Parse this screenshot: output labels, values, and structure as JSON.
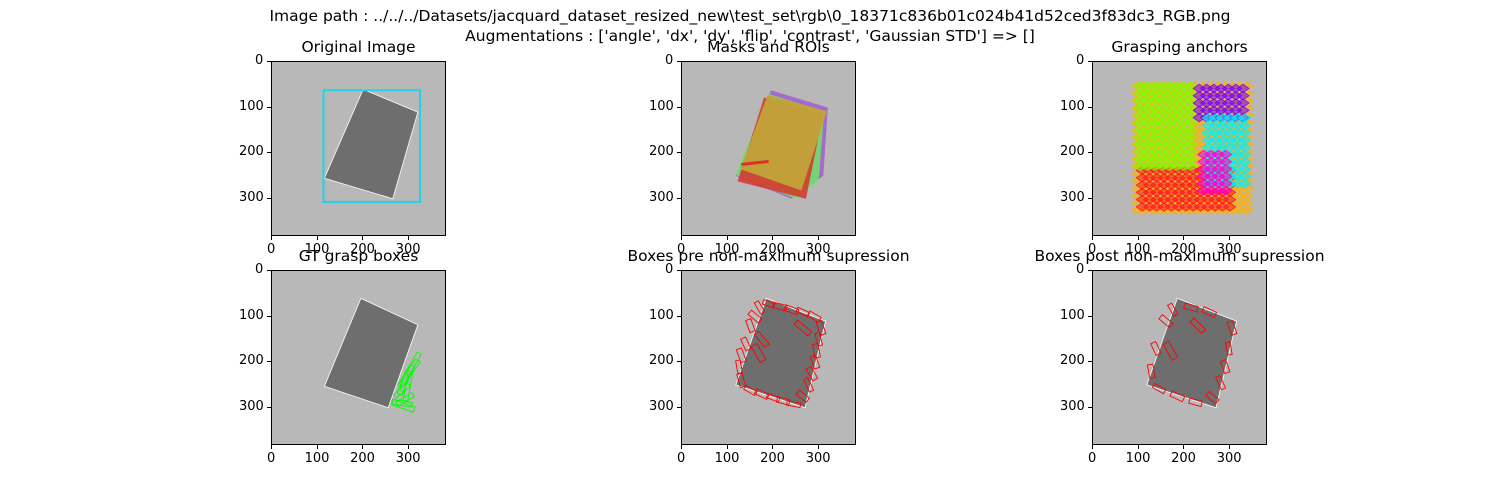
{
  "figure": {
    "suptitle_line1": "Image path : ../../../Datasets/jacquard_dataset_resized_new\\test_set\\rgb\\0_18371c836b01c024b41d52ced3f83dc3_RGB.png",
    "suptitle_line2": "Augmentations : ['angle', 'dx', 'dy', 'flip', 'contrast', 'Gaussian STD'] => []"
  },
  "colors": {
    "background": "#b8b8b8",
    "object": "#6e6e6e",
    "roi_box": "#1fd4ea",
    "mask_orange": "#c2a33a",
    "mask_red": "#d9322a",
    "mask_green": "#6fe36a",
    "mask_purple": "#a35ccf",
    "anchor_green": "#7cff00",
    "anchor_purple": "#7a00ff",
    "anchor_cyan": "#00f0ff",
    "anchor_magenta": "#ff00d0",
    "anchor_red": "#ff1a1a",
    "anchor_orange": "#ffb000",
    "grasp_green": "#00ff00",
    "grasp_red": "#ff0000"
  },
  "chart_data": [
    {
      "type": "image",
      "title": "Original Image",
      "xlim": [
        0,
        384
      ],
      "ylim": [
        384,
        0
      ],
      "xticks": [
        0,
        100,
        200,
        300
      ],
      "yticks": [
        0,
        100,
        200,
        300
      ],
      "object_polygon": [
        [
          200,
          60
        ],
        [
          320,
          110
        ],
        [
          265,
          300
        ],
        [
          115,
          255
        ]
      ],
      "roi_box": {
        "x1": 113,
        "y1": 62,
        "x2": 325,
        "y2": 307
      }
    },
    {
      "type": "image",
      "title": "Masks and ROIs",
      "xlim": [
        0,
        384
      ],
      "ylim": [
        384,
        0
      ],
      "xticks": [
        0,
        100,
        200,
        300
      ],
      "yticks": [
        0,
        100,
        200,
        300
      ],
      "masks": [
        {
          "color_key": "mask_purple",
          "polygon": [
            [
              195,
              62
            ],
            [
              320,
              100
            ],
            [
              310,
              250
            ],
            [
              240,
              300
            ],
            [
              118,
              250
            ]
          ]
        },
        {
          "color_key": "mask_green",
          "polygon": [
            [
              190,
              70
            ],
            [
              312,
              108
            ],
            [
              300,
              260
            ],
            [
              250,
              300
            ],
            [
              118,
              248
            ]
          ]
        },
        {
          "color_key": "mask_red",
          "polygon": [
            [
              180,
              78
            ],
            [
              310,
              112
            ],
            [
              272,
              300
            ],
            [
              122,
              262
            ]
          ]
        },
        {
          "color_key": "mask_orange",
          "polygon": [
            [
              188,
              72
            ],
            [
              318,
              108
            ],
            [
              262,
              282
            ],
            [
              128,
              235
            ]
          ]
        }
      ]
    },
    {
      "type": "image",
      "title": "Grasping anchors",
      "xlim": [
        0,
        384
      ],
      "ylim": [
        384,
        0
      ],
      "xticks": [
        0,
        100,
        200,
        300
      ],
      "yticks": [
        0,
        100,
        200,
        300
      ],
      "anchor_regions": [
        {
          "color_key": "anchor_orange",
          "x1": 90,
          "y1": 45,
          "x2": 345,
          "y2": 325
        },
        {
          "color_key": "anchor_red",
          "x1": 100,
          "y1": 230,
          "x2": 300,
          "y2": 320
        },
        {
          "color_key": "anchor_green",
          "x1": 95,
          "y1": 45,
          "x2": 225,
          "y2": 240
        },
        {
          "color_key": "anchor_purple",
          "x1": 225,
          "y1": 50,
          "x2": 335,
          "y2": 130
        },
        {
          "color_key": "anchor_cyan",
          "x1": 245,
          "y1": 115,
          "x2": 345,
          "y2": 275
        },
        {
          "color_key": "anchor_magenta",
          "x1": 235,
          "y1": 195,
          "x2": 305,
          "y2": 295
        }
      ]
    },
    {
      "type": "image",
      "title": "GT grasp boxes",
      "xlim": [
        0,
        384
      ],
      "ylim": [
        384,
        0
      ],
      "xticks": [
        0,
        100,
        200,
        300
      ],
      "yticks": [
        0,
        100,
        200,
        300
      ],
      "object_polygon": [
        [
          195,
          60
        ],
        [
          320,
          118
        ],
        [
          255,
          300
        ],
        [
          115,
          253
        ]
      ],
      "grasps": [
        {
          "cx": 296,
          "cy": 235,
          "w": 60,
          "h": 10,
          "angle": -65
        },
        {
          "cx": 300,
          "cy": 225,
          "w": 70,
          "h": 12,
          "angle": -55
        },
        {
          "cx": 303,
          "cy": 215,
          "w": 80,
          "h": 10,
          "angle": -60
        },
        {
          "cx": 290,
          "cy": 245,
          "w": 55,
          "h": 12,
          "angle": -70
        },
        {
          "cx": 285,
          "cy": 262,
          "w": 40,
          "h": 10,
          "angle": -40
        },
        {
          "cx": 285,
          "cy": 290,
          "w": 45,
          "h": 10,
          "angle": 10
        },
        {
          "cx": 288,
          "cy": 296,
          "w": 50,
          "h": 12,
          "angle": 20
        },
        {
          "cx": 292,
          "cy": 282,
          "w": 42,
          "h": 10,
          "angle": -30
        },
        {
          "cx": 298,
          "cy": 255,
          "w": 60,
          "h": 10,
          "angle": -80
        }
      ]
    },
    {
      "type": "image",
      "title": "Boxes pre non-maximum supression",
      "xlim": [
        0,
        384
      ],
      "ylim": [
        384,
        0
      ],
      "xticks": [
        0,
        100,
        200,
        300
      ],
      "yticks": [
        0,
        100,
        200,
        300
      ],
      "object_polygon": [
        [
          185,
          60
        ],
        [
          315,
          110
        ],
        [
          270,
          300
        ],
        [
          118,
          250
        ]
      ],
      "grasps": [
        {
          "cx": 170,
          "cy": 80,
          "w": 28,
          "h": 10,
          "angle": 60
        },
        {
          "cx": 160,
          "cy": 100,
          "w": 30,
          "h": 12,
          "angle": 40
        },
        {
          "cx": 150,
          "cy": 120,
          "w": 28,
          "h": 12,
          "angle": 70
        },
        {
          "cx": 190,
          "cy": 72,
          "w": 26,
          "h": 10,
          "angle": 20
        },
        {
          "cx": 215,
          "cy": 78,
          "w": 30,
          "h": 12,
          "angle": 15
        },
        {
          "cx": 240,
          "cy": 85,
          "w": 30,
          "h": 12,
          "angle": 20
        },
        {
          "cx": 265,
          "cy": 90,
          "w": 28,
          "h": 10,
          "angle": 25
        },
        {
          "cx": 290,
          "cy": 100,
          "w": 28,
          "h": 12,
          "angle": 30
        },
        {
          "cx": 305,
          "cy": 125,
          "w": 30,
          "h": 12,
          "angle": 70
        },
        {
          "cx": 300,
          "cy": 150,
          "w": 28,
          "h": 10,
          "angle": 75
        },
        {
          "cx": 295,
          "cy": 175,
          "w": 30,
          "h": 12,
          "angle": 80
        },
        {
          "cx": 292,
          "cy": 200,
          "w": 28,
          "h": 12,
          "angle": 70
        },
        {
          "cx": 285,
          "cy": 225,
          "w": 30,
          "h": 12,
          "angle": 60
        },
        {
          "cx": 278,
          "cy": 250,
          "w": 30,
          "h": 10,
          "angle": 65
        },
        {
          "cx": 265,
          "cy": 275,
          "w": 28,
          "h": 12,
          "angle": 40
        },
        {
          "cx": 245,
          "cy": 292,
          "w": 30,
          "h": 10,
          "angle": 10
        },
        {
          "cx": 222,
          "cy": 285,
          "w": 28,
          "h": 12,
          "angle": 15
        },
        {
          "cx": 200,
          "cy": 278,
          "w": 28,
          "h": 10,
          "angle": 20
        },
        {
          "cx": 175,
          "cy": 270,
          "w": 30,
          "h": 12,
          "angle": 25
        },
        {
          "cx": 150,
          "cy": 262,
          "w": 28,
          "h": 10,
          "angle": 30
        },
        {
          "cx": 130,
          "cy": 240,
          "w": 30,
          "h": 12,
          "angle": 75
        },
        {
          "cx": 125,
          "cy": 210,
          "w": 28,
          "h": 10,
          "angle": 80
        },
        {
          "cx": 130,
          "cy": 185,
          "w": 30,
          "h": 12,
          "angle": 70
        },
        {
          "cx": 140,
          "cy": 160,
          "w": 28,
          "h": 12,
          "angle": 65
        },
        {
          "cx": 168,
          "cy": 180,
          "w": 40,
          "h": 14,
          "angle": 60
        },
        {
          "cx": 175,
          "cy": 150,
          "w": 36,
          "h": 12,
          "angle": 50
        },
        {
          "cx": 265,
          "cy": 125,
          "w": 40,
          "h": 12,
          "angle": 40
        }
      ]
    },
    {
      "type": "image",
      "title": "Boxes post non-maximum supression",
      "xlim": [
        0,
        384
      ],
      "ylim": [
        384,
        0
      ],
      "xticks": [
        0,
        100,
        200,
        300
      ],
      "yticks": [
        0,
        100,
        200,
        300
      ],
      "object_polygon": [
        [
          185,
          60
        ],
        [
          315,
          110
        ],
        [
          270,
          300
        ],
        [
          118,
          250
        ]
      ],
      "grasps": [
        {
          "cx": 175,
          "cy": 85,
          "w": 28,
          "h": 10,
          "angle": 60
        },
        {
          "cx": 160,
          "cy": 110,
          "w": 30,
          "h": 12,
          "angle": 40
        },
        {
          "cx": 215,
          "cy": 80,
          "w": 30,
          "h": 12,
          "angle": 15
        },
        {
          "cx": 255,
          "cy": 90,
          "w": 30,
          "h": 12,
          "angle": 25
        },
        {
          "cx": 305,
          "cy": 125,
          "w": 30,
          "h": 12,
          "angle": 70
        },
        {
          "cx": 298,
          "cy": 170,
          "w": 28,
          "h": 10,
          "angle": 80
        },
        {
          "cx": 290,
          "cy": 210,
          "w": 28,
          "h": 12,
          "angle": 70
        },
        {
          "cx": 280,
          "cy": 245,
          "w": 30,
          "h": 10,
          "angle": 65
        },
        {
          "cx": 262,
          "cy": 278,
          "w": 28,
          "h": 12,
          "angle": 40
        },
        {
          "cx": 225,
          "cy": 288,
          "w": 28,
          "h": 12,
          "angle": 15
        },
        {
          "cx": 185,
          "cy": 275,
          "w": 30,
          "h": 12,
          "angle": 25
        },
        {
          "cx": 145,
          "cy": 258,
          "w": 28,
          "h": 10,
          "angle": 30
        },
        {
          "cx": 128,
          "cy": 220,
          "w": 30,
          "h": 12,
          "angle": 80
        },
        {
          "cx": 138,
          "cy": 170,
          "w": 28,
          "h": 12,
          "angle": 65
        },
        {
          "cx": 170,
          "cy": 175,
          "w": 40,
          "h": 14,
          "angle": 60
        },
        {
          "cx": 230,
          "cy": 120,
          "w": 36,
          "h": 12,
          "angle": 45
        }
      ]
    }
  ]
}
